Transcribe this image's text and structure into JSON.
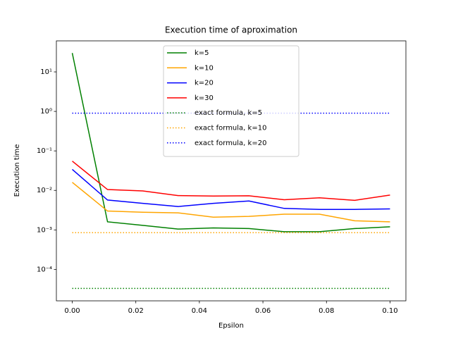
{
  "chart_data": {
    "type": "line",
    "title": "Execution time of aproximation",
    "xlabel": "Epsilon",
    "ylabel": "Execution time",
    "x": [
      0,
      0.0111,
      0.0222,
      0.0333,
      0.0444,
      0.0556,
      0.0667,
      0.0778,
      0.0889,
      0.1
    ],
    "series": [
      {
        "name": "k=5",
        "color": "green",
        "linestyle": "solid",
        "values": [
          30,
          0.0016,
          0.0013,
          0.00105,
          0.00112,
          0.00108,
          0.0009,
          0.0009,
          0.00108,
          0.0012
        ]
      },
      {
        "name": "k=10",
        "color": "orange",
        "linestyle": "solid",
        "values": [
          0.016,
          0.003,
          0.0028,
          0.0027,
          0.0021,
          0.0022,
          0.0025,
          0.0025,
          0.0017,
          0.0016
        ]
      },
      {
        "name": "k=20",
        "color": "blue",
        "linestyle": "solid",
        "values": [
          0.034,
          0.0057,
          0.0047,
          0.0039,
          0.0047,
          0.0054,
          0.0035,
          0.0033,
          0.0033,
          0.0034
        ]
      },
      {
        "name": "k=30",
        "color": "red",
        "linestyle": "solid",
        "values": [
          0.055,
          0.0105,
          0.0097,
          0.0074,
          0.0072,
          0.0073,
          0.0058,
          0.0065,
          0.0056,
          0.0076
        ]
      },
      {
        "name": "exact formula, k=5",
        "color": "green",
        "linestyle": "dotted",
        "values": [
          3.3e-05,
          3.3e-05,
          3.3e-05,
          3.3e-05,
          3.3e-05,
          3.3e-05,
          3.3e-05,
          3.3e-05,
          3.3e-05,
          3.3e-05
        ]
      },
      {
        "name": "exact formula, k=10",
        "color": "orange",
        "linestyle": "dotted",
        "values": [
          0.00085,
          0.00085,
          0.00085,
          0.00085,
          0.00085,
          0.00085,
          0.00085,
          0.00085,
          0.00085,
          0.00085
        ]
      },
      {
        "name": "exact formula, k=20",
        "color": "blue",
        "linestyle": "dotted",
        "values": [
          0.9,
          0.9,
          0.9,
          0.9,
          0.9,
          0.9,
          0.9,
          0.9,
          0.9,
          0.9
        ]
      }
    ],
    "xlim": [
      -0.005,
      0.105
    ],
    "xticks": [
      {
        "value": 0,
        "label": "0.00"
      },
      {
        "value": 0.02,
        "label": "0.02"
      },
      {
        "value": 0.04,
        "label": "0.04"
      },
      {
        "value": 0.06,
        "label": "0.06"
      },
      {
        "value": 0.08,
        "label": "0.08"
      },
      {
        "value": 0.1,
        "label": "0.10"
      }
    ],
    "ylim": [
      1.6e-05,
      61
    ],
    "yscale": "log",
    "yticks": [
      {
        "value": 0.0001,
        "label": "10⁻⁴"
      },
      {
        "value": 0.001,
        "label": "10⁻³"
      },
      {
        "value": 0.01,
        "label": "10⁻²"
      },
      {
        "value": 0.1,
        "label": "10⁻¹"
      },
      {
        "value": 1,
        "label": "10⁰"
      },
      {
        "value": 10,
        "label": "10¹"
      }
    ],
    "legend": "upper center"
  }
}
